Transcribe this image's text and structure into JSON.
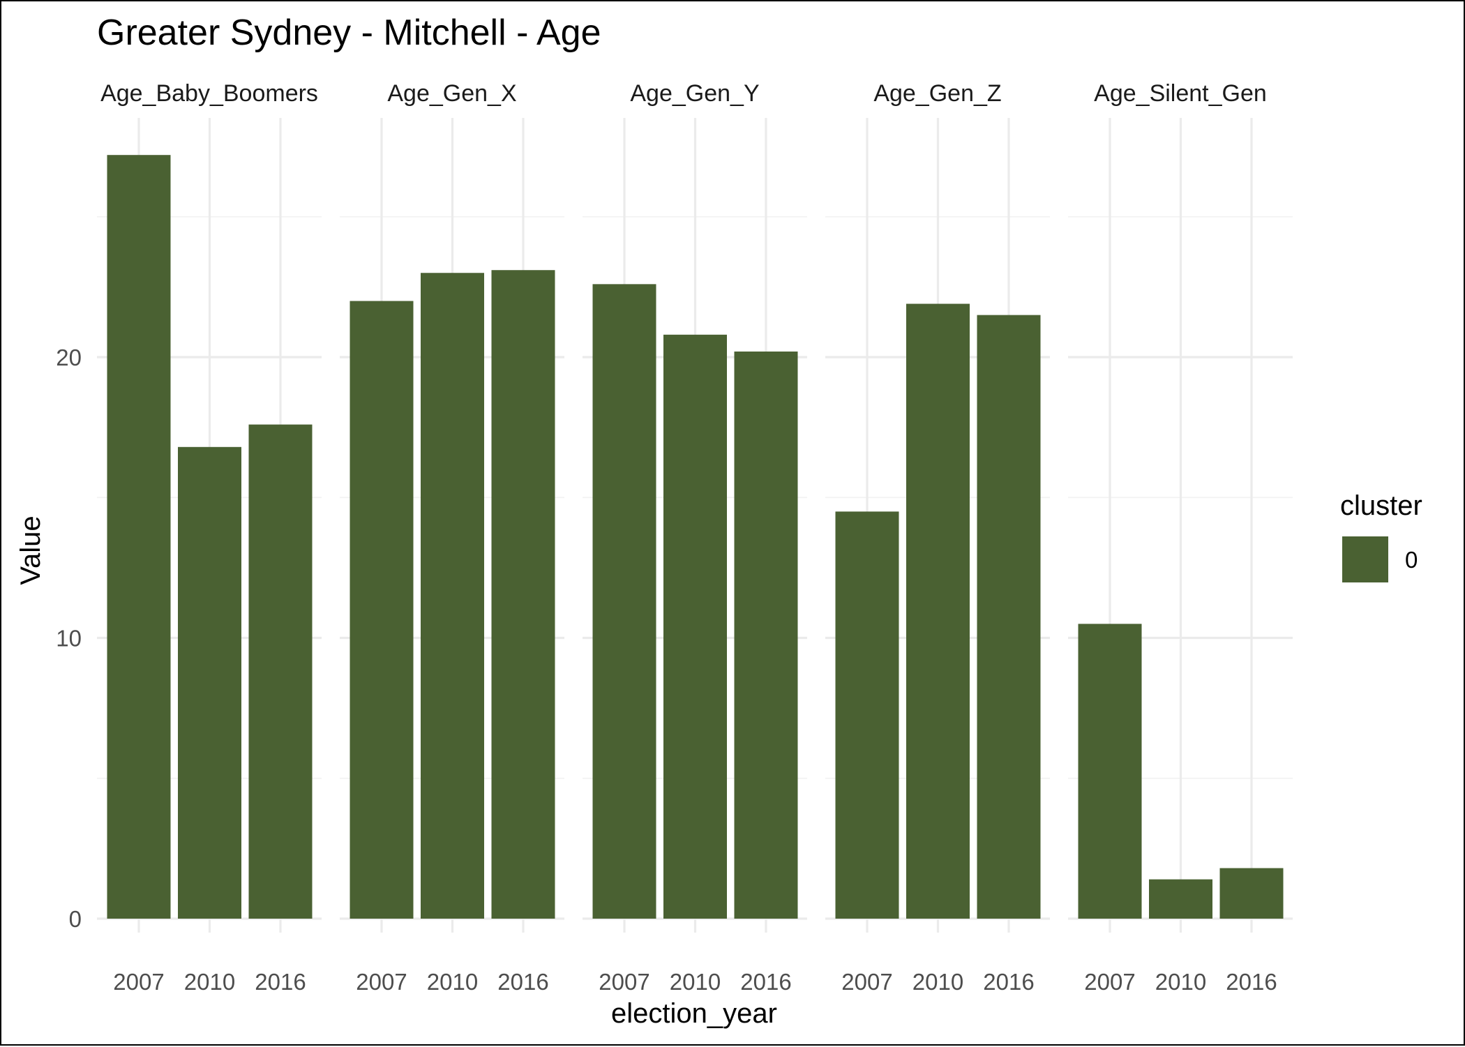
{
  "chart_data": {
    "type": "bar",
    "title": "Greater Sydney - Mitchell - Age",
    "xlabel": "election_year",
    "ylabel": "Value",
    "categories": [
      "2007",
      "2010",
      "2016"
    ],
    "ylim": [
      0,
      27.5
    ],
    "yticks": [
      0,
      10,
      20
    ],
    "grid": true,
    "bar_color": "#4a6132",
    "facets": [
      {
        "name": "Age_Baby_Boomers",
        "values": [
          27.2,
          16.8,
          17.6
        ]
      },
      {
        "name": "Age_Gen_X",
        "values": [
          22.0,
          23.0,
          23.1
        ]
      },
      {
        "name": "Age_Gen_Y",
        "values": [
          22.6,
          20.8,
          20.2
        ]
      },
      {
        "name": "Age_Gen_Z",
        "values": [
          14.5,
          21.9,
          21.5
        ]
      },
      {
        "name": "Age_Silent_Gen",
        "values": [
          10.5,
          1.4,
          1.8
        ]
      }
    ],
    "legend": {
      "title": "cluster",
      "placement": "right",
      "entries": [
        {
          "label": "0",
          "color": "#4a6132"
        }
      ]
    }
  }
}
